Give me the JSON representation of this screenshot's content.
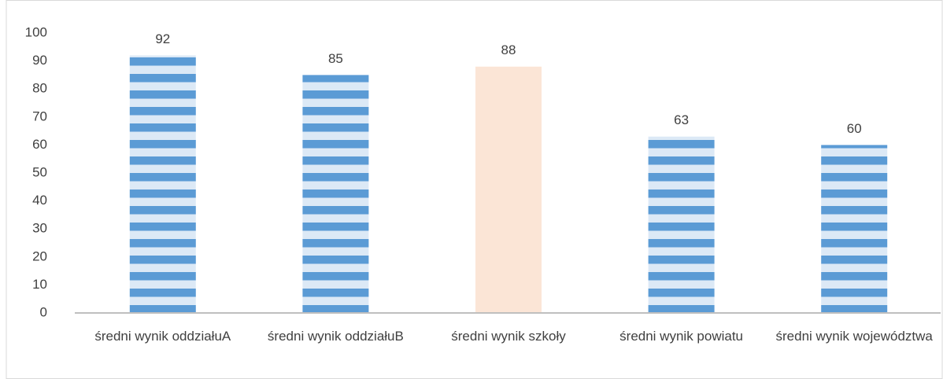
{
  "chart_data": {
    "type": "bar",
    "categories": [
      "średni wynik oddziałuA",
      "średni wynik oddziałuB",
      "średni wynik szkoły",
      "średni wynik powiatu",
      "średni wynik województwa"
    ],
    "values": [
      92,
      85,
      88,
      63,
      60
    ],
    "colors": [
      "#5b9bd5",
      "#5b9bd5",
      "#fbe5d6",
      "#5b9bd5",
      "#5b9bd5"
    ],
    "patterned": [
      true,
      true,
      false,
      true,
      true
    ],
    "ylim": [
      0,
      100
    ],
    "yticks": [
      0,
      10,
      20,
      30,
      40,
      50,
      60,
      70,
      80,
      90,
      100
    ],
    "grid": false
  }
}
